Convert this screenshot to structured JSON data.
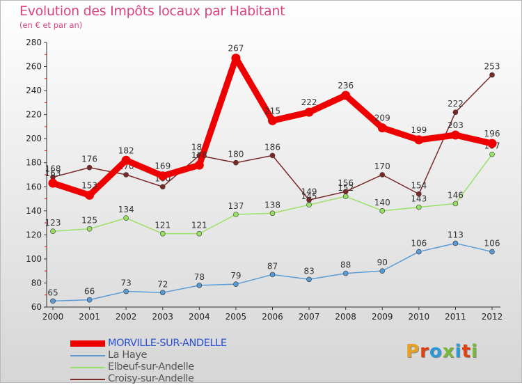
{
  "title": "Evolution des Impôts locaux par Habitant",
  "subtitle": "(en € et par an)",
  "logo_text": "Proxiti",
  "logo_colors": [
    "#e8a020",
    "#e04010",
    "#2a9ad8",
    "#7ab83a",
    "#2a9ad8",
    "#e04010",
    "#7ab83a"
  ],
  "chart_data": {
    "type": "line",
    "title": "Evolution des Impôts locaux par Habitant",
    "subtitle": "(en € et par an)",
    "xlabel": "",
    "ylabel": "",
    "x": [
      2000,
      2001,
      2002,
      2003,
      2004,
      2005,
      2006,
      2007,
      2008,
      2009,
      2010,
      2011,
      2012
    ],
    "yticks": [
      60,
      80,
      100,
      120,
      140,
      160,
      180,
      200,
      220,
      240,
      260,
      280
    ],
    "ylim": [
      60,
      280
    ],
    "grid": false,
    "legend_position": "bottom-left",
    "series": [
      {
        "name": "MORVILLE-SUR-ANDELLE",
        "color": "#ee0000",
        "values": [
          163,
          153,
          182,
          169,
          178,
          267,
          215,
          222,
          236,
          209,
          199,
          203,
          196
        ],
        "labels": [
          "163",
          "153",
          "182",
          "169",
          "178",
          "267",
          "215",
          "222",
          "236",
          "209",
          "199",
          "203",
          "196"
        ]
      },
      {
        "name": "La Haye",
        "color": "#5b9bd5",
        "values": [
          65,
          66,
          73,
          72,
          78,
          79,
          87,
          83,
          88,
          90,
          106,
          113,
          106
        ],
        "labels": [
          "65",
          "66",
          "73",
          "72",
          "78",
          "79",
          "87",
          "83",
          "88",
          "90",
          "106",
          "113",
          "106"
        ]
      },
      {
        "name": "Elbeuf-sur-Andelle",
        "color": "#99e066",
        "values": [
          123,
          125,
          134,
          121,
          121,
          137,
          138,
          145,
          152,
          140,
          143,
          146,
          187
        ],
        "labels": [
          "123",
          "125",
          "134",
          "121",
          "121",
          "137",
          "138",
          "145",
          "152",
          "140",
          "143",
          "146",
          "187"
        ]
      },
      {
        "name": "Croisy-sur-Andelle",
        "color": "#7a2828",
        "values": [
          168,
          176,
          170,
          160,
          186,
          180,
          186,
          149,
          156,
          170,
          154,
          222,
          253
        ],
        "labels": [
          "168",
          "176",
          "170",
          "160",
          "186",
          "180",
          "186",
          "149",
          "156",
          "170",
          "154",
          "222",
          "253"
        ]
      }
    ]
  }
}
